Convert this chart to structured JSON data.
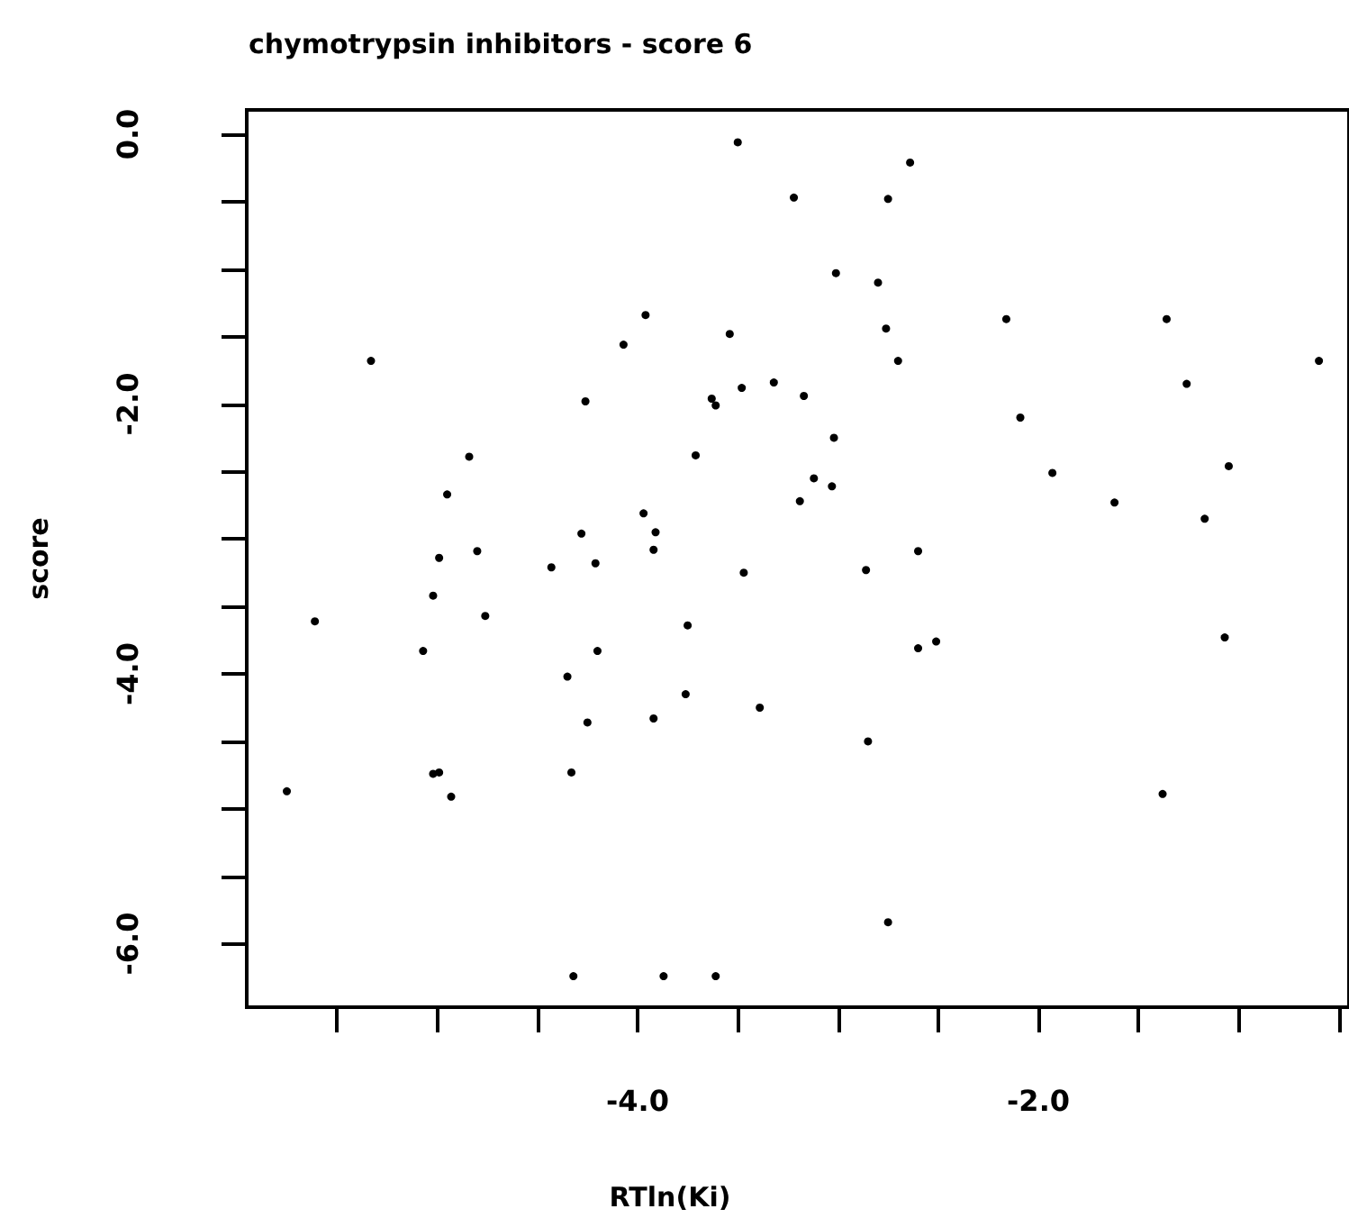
{
  "chart_data": {
    "type": "scatter",
    "title": "chymotrypsin inhibitors - score 6",
    "xlabel": "RTln(Ki)",
    "ylabel": "score",
    "x": [
      -5.75,
      -5.61,
      -5.33,
      -5.07,
      -5.02,
      -4.99,
      -4.95,
      -5.02,
      -4.99,
      -4.93,
      -4.84,
      -4.8,
      -4.76,
      -4.43,
      -4.35,
      -4.33,
      -4.32,
      -4.28,
      -4.26,
      -4.25,
      -4.21,
      -4.2,
      -4.07,
      -3.97,
      -3.96,
      -3.92,
      -3.91,
      -3.92,
      -3.87,
      -3.76,
      -3.75,
      -3.71,
      -3.63,
      -3.61,
      -3.61,
      -3.54,
      -3.5,
      -3.48,
      -3.47,
      -3.39,
      -3.32,
      -3.22,
      -3.19,
      -3.17,
      -3.12,
      -3.03,
      -3.02,
      -3.01,
      -2.86,
      -2.85,
      -2.8,
      -2.76,
      -2.75,
      -2.75,
      -2.7,
      -2.64,
      -2.6,
      -2.6,
      -2.51,
      -2.16,
      -2.09,
      -1.93,
      -1.62,
      -1.38,
      -1.36,
      -1.26,
      -1.17,
      -1.07,
      -1.05,
      -0.6
    ],
    "values": [
      -4.87,
      -3.61,
      -1.68,
      -3.83,
      -3.42,
      -3.14,
      -2.67,
      -4.74,
      -4.73,
      -4.91,
      -2.39,
      -3.09,
      -3.57,
      -3.21,
      -4.02,
      -4.73,
      -6.24,
      -2.96,
      -1.98,
      -4.36,
      -3.18,
      -3.83,
      -1.56,
      -2.81,
      -1.34,
      -3.08,
      -2.95,
      -4.33,
      -6.24,
      -4.15,
      -3.64,
      -2.38,
      -1.96,
      -2.01,
      -6.24,
      -1.48,
      -0.06,
      -1.88,
      -3.25,
      -4.25,
      -1.84,
      -0.47,
      -2.72,
      -1.94,
      -2.55,
      -2.61,
      -2.25,
      -1.03,
      -3.23,
      -4.5,
      -1.1,
      -1.44,
      -0.48,
      -5.84,
      -1.68,
      -0.21,
      -3.09,
      -3.81,
      -3.76,
      -1.37,
      -2.1,
      -2.51,
      -2.73,
      -4.89,
      -1.37,
      -1.85,
      -2.85,
      -3.73,
      -2.46,
      -1.68
    ],
    "color": "#000000",
    "marker": "circle",
    "xlim": [
      -5.95,
      -0.45
    ],
    "ylim": [
      -6.47,
      0.18
    ],
    "xticks": [
      {
        "value": -5.5,
        "label": null
      },
      {
        "value": -5,
        "label": null
      },
      {
        "value": -4.5,
        "label": null
      },
      {
        "value": -4,
        "label": "-4.0"
      },
      {
        "value": -3.5,
        "label": null
      },
      {
        "value": -3,
        "label": null
      },
      {
        "value": -2.5,
        "label": null
      },
      {
        "value": -2,
        "label": "-2.0"
      },
      {
        "value": -1.5,
        "label": null
      },
      {
        "value": -1,
        "label": null
      },
      {
        "value": -0.5,
        "label": null
      }
    ],
    "yticks": [
      {
        "value": 0,
        "label": "0.0"
      },
      {
        "value": -0.5,
        "label": null
      },
      {
        "value": -1,
        "label": null
      },
      {
        "value": -1.5,
        "label": null
      },
      {
        "value": -2,
        "label": "-2.0"
      },
      {
        "value": -2.5,
        "label": null
      },
      {
        "value": -3,
        "label": null
      },
      {
        "value": -3.5,
        "label": null
      },
      {
        "value": -4,
        "label": "-4.0"
      },
      {
        "value": -4.5,
        "label": null
      },
      {
        "value": -5,
        "label": null
      },
      {
        "value": -5.5,
        "label": null
      },
      {
        "value": -6,
        "label": "-6.0"
      }
    ]
  }
}
